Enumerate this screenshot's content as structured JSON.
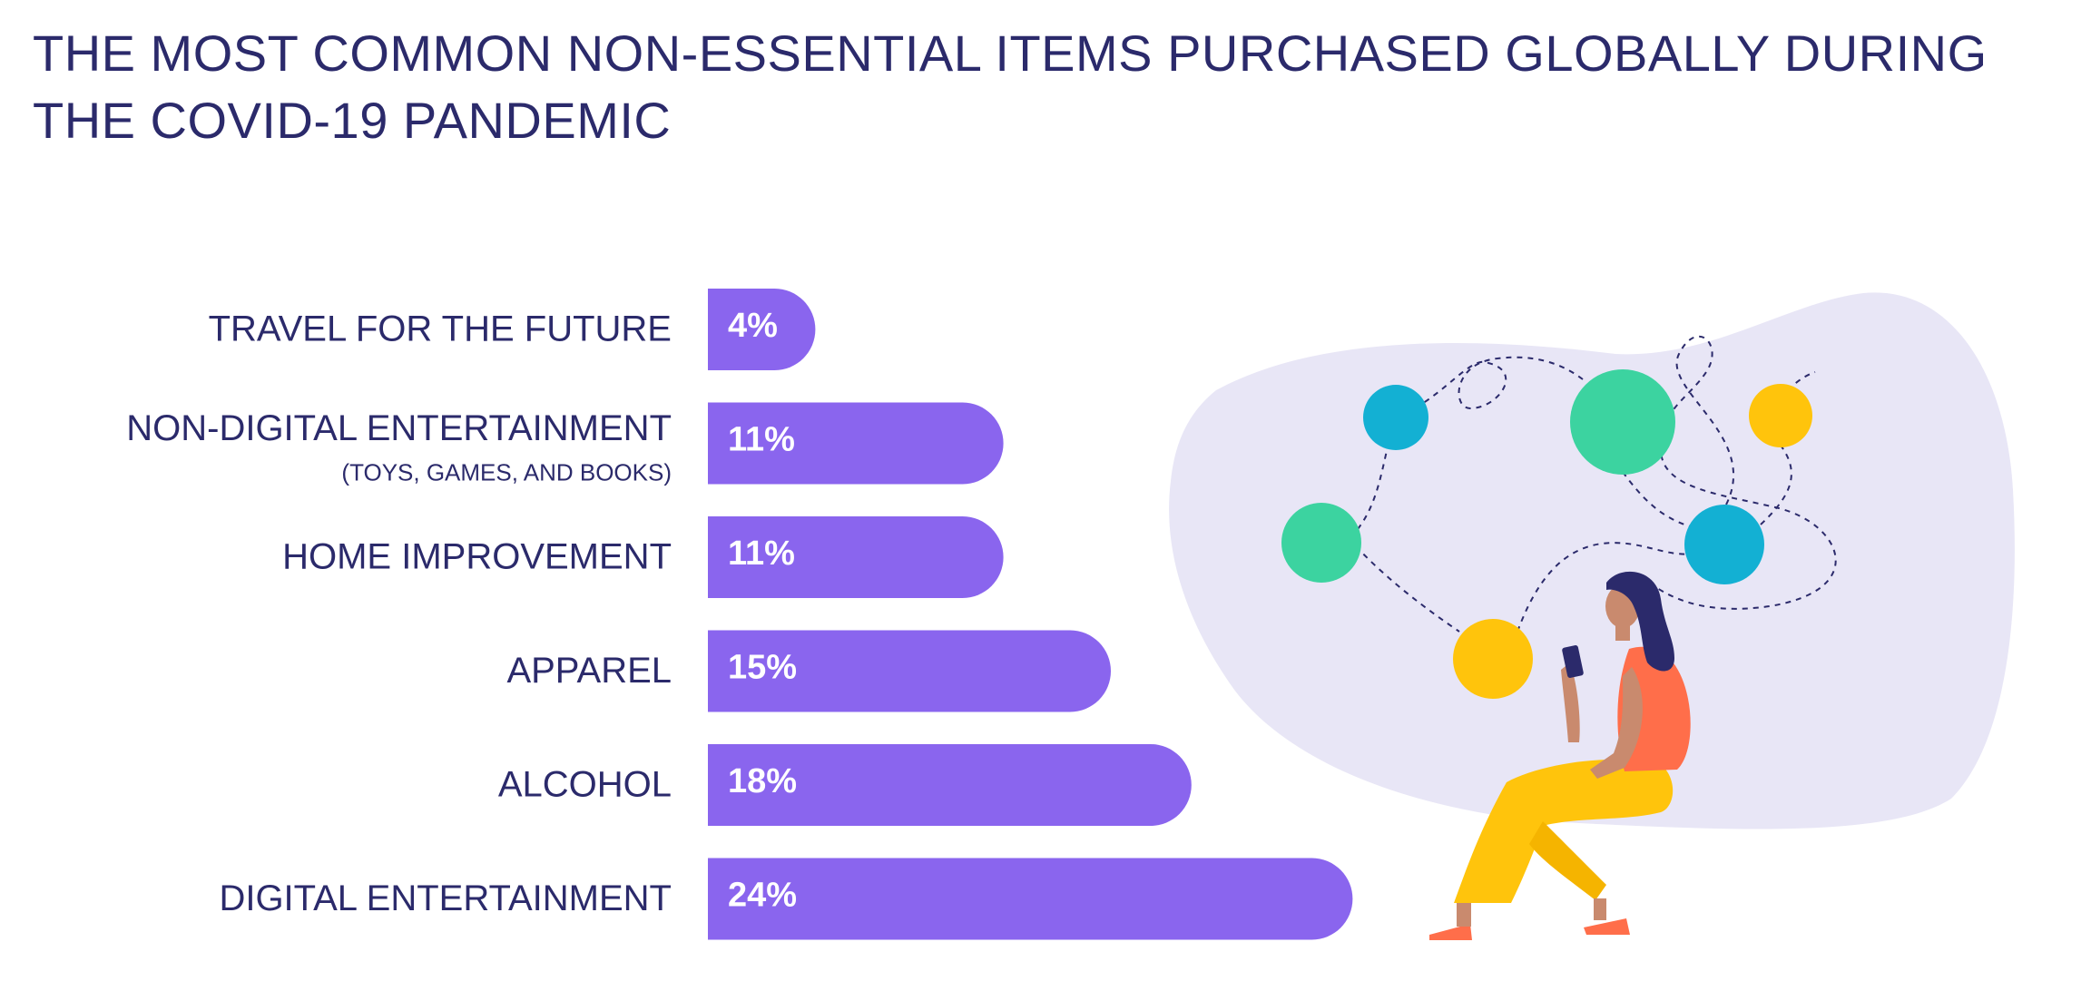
{
  "title": "THE MOST COMMON NON-ESSENTIAL ITEMS PURCHASED GLOBALLY DURING THE COVID-19 PANDEMIC",
  "colors": {
    "title": "#2b2a6b",
    "bar": "#8a65ee",
    "bar_label": "#ffffff",
    "category_label": "#2b2a6b",
    "blob": "#e8e6f6",
    "bubble_green": "#3cd3a0",
    "bubble_blue": "#13b0d3",
    "bubble_yellow": "#ffc40c",
    "skin": "#c98a6e",
    "shirt": "#ff6e4a",
    "pants": "#ffc40c",
    "hair": "#2b2a6b"
  },
  "illustration": {
    "icons": [
      "woman-with-phone-icon",
      "network-bubbles-icon"
    ]
  },
  "chart_data": {
    "type": "bar",
    "orientation": "horizontal",
    "title": "THE MOST COMMON NON-ESSENTIAL ITEMS PURCHASED GLOBALLY DURING THE COVID-19 PANDEMIC",
    "categories": [
      {
        "label": "TRAVEL FOR THE FUTURE",
        "sublabel": ""
      },
      {
        "label": "NON-DIGITAL ENTERTAINMENT",
        "sublabel": "(TOYS, GAMES, AND BOOKS)"
      },
      {
        "label": "HOME IMPROVEMENT",
        "sublabel": ""
      },
      {
        "label": "APPAREL",
        "sublabel": ""
      },
      {
        "label": "ALCOHOL",
        "sublabel": ""
      },
      {
        "label": "DIGITAL ENTERTAINMENT",
        "sublabel": ""
      }
    ],
    "values": [
      4,
      11,
      11,
      15,
      18,
      24
    ],
    "value_labels": [
      "4%",
      "11%",
      "11%",
      "15%",
      "18%",
      "24%"
    ],
    "unit": "%",
    "xlim": [
      0,
      24
    ],
    "grid": false,
    "legend": "none"
  }
}
